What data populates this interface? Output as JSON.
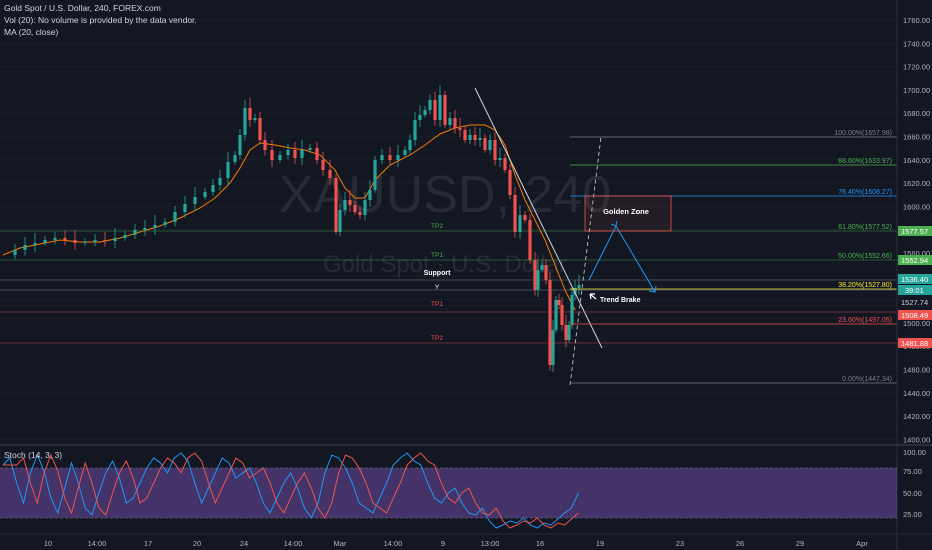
{
  "header": {
    "title": "Gold Spot / U.S. Dollar, 240, FOREX.com",
    "vol": "Vol (20): No volume is provided by the data vendor.",
    "ma": "MA (20, close)"
  },
  "watermark": {
    "symbol": "XAUUSD, 240",
    "name": "Gold Spot · U.S. Dollar"
  },
  "price_axis": {
    "ticks": [
      "1760.00",
      "1740.00",
      "1720.00",
      "1700.00",
      "1680.00",
      "1660.00",
      "1640.00",
      "1620.00",
      "1600.00",
      "1580.00",
      "1560.00",
      "1540.00",
      "1520.00",
      "1500.00",
      "1480.00",
      "1460.00",
      "1440.00",
      "1420.00",
      "1400.00"
    ],
    "badges": [
      {
        "text": "1577.57",
        "color": "#4caf50"
      },
      {
        "text": "1552.94",
        "color": "#4caf50"
      },
      {
        "text": "1536.40",
        "color": "#26a69a"
      },
      {
        "text": "39:01",
        "color": "#26a69a"
      },
      {
        "text": "1527.74",
        "color": "#131722"
      },
      {
        "text": "1508.49",
        "color": "#ef5350"
      },
      {
        "text": "1481.88",
        "color": "#ef5350"
      }
    ]
  },
  "fib_levels": [
    {
      "label": "100.00%(1657.98)",
      "color": "#787b86"
    },
    {
      "label": "88.60%(1633.97)",
      "color": "#4caf50"
    },
    {
      "label": "76.40%(1608.27)",
      "color": "#2196f3"
    },
    {
      "label": "61.80%(1577.52)",
      "color": "#4caf50"
    },
    {
      "label": "50.00%(1552.66)",
      "color": "#4caf50"
    },
    {
      "label": "38.20%(1527.80)",
      "color": "#ffeb3b"
    },
    {
      "label": "23.60%(1497.05)",
      "color": "#ef5350"
    },
    {
      "label": "0.00%(1447.34)",
      "color": "#787b86"
    }
  ],
  "annotations": {
    "golden_zone": "Golden Zone",
    "support": "Support",
    "support_y": "Y",
    "tp2_green": "TP2",
    "tp1_green": "TP1",
    "tp1_red": "TP1",
    "tp2_red": "TP2",
    "trend_brake": "Trend Brake"
  },
  "stoch": {
    "label": "Stoch (14, 3, 3)",
    "ticks": [
      "100.00",
      "75.00",
      "50.00",
      "25.00"
    ]
  },
  "time_axis": [
    "10",
    "14:00",
    "17",
    "20",
    "24",
    "14:00",
    "Mar",
    "14:00",
    "9",
    "13:00",
    "16",
    "19",
    "23",
    "26",
    "29",
    "Apr"
  ]
}
